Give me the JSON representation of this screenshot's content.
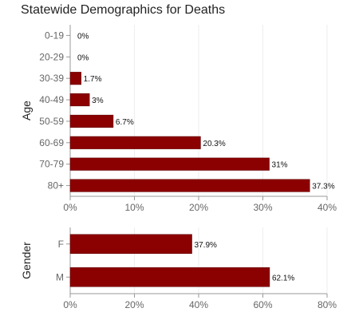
{
  "colors": {
    "bar": "#8b0000",
    "bar_stroke": "#5a0000"
  },
  "chart_data": [
    {
      "type": "bar",
      "orientation": "horizontal",
      "title": "Statewide Demographics for Deaths",
      "ylabel": "Age",
      "categories": [
        "0-19",
        "20-29",
        "30-39",
        "40-49",
        "50-59",
        "60-69",
        "70-79",
        "80+"
      ],
      "values": [
        0,
        0,
        1.7,
        3,
        6.7,
        20.3,
        31,
        37.3
      ],
      "value_labels": [
        "0%",
        "0%",
        "1.7%",
        "3%",
        "6.7%",
        "20.3%",
        "31%",
        "37.3%"
      ],
      "xlim": [
        0,
        40
      ],
      "ticks": [
        0,
        10,
        20,
        30,
        40
      ],
      "tick_labels": [
        "0%",
        "10%",
        "20%",
        "30%",
        "40%"
      ],
      "grid": true
    },
    {
      "type": "bar",
      "orientation": "horizontal",
      "ylabel": "Gender",
      "categories": [
        "F",
        "M"
      ],
      "values": [
        37.9,
        62.1
      ],
      "value_labels": [
        "37.9%",
        "62.1%"
      ],
      "xlim": [
        0,
        80
      ],
      "ticks": [
        0,
        20,
        40,
        60,
        80
      ],
      "tick_labels": [
        "0%",
        "20%",
        "40%",
        "60%",
        "80%"
      ],
      "grid": true
    }
  ]
}
